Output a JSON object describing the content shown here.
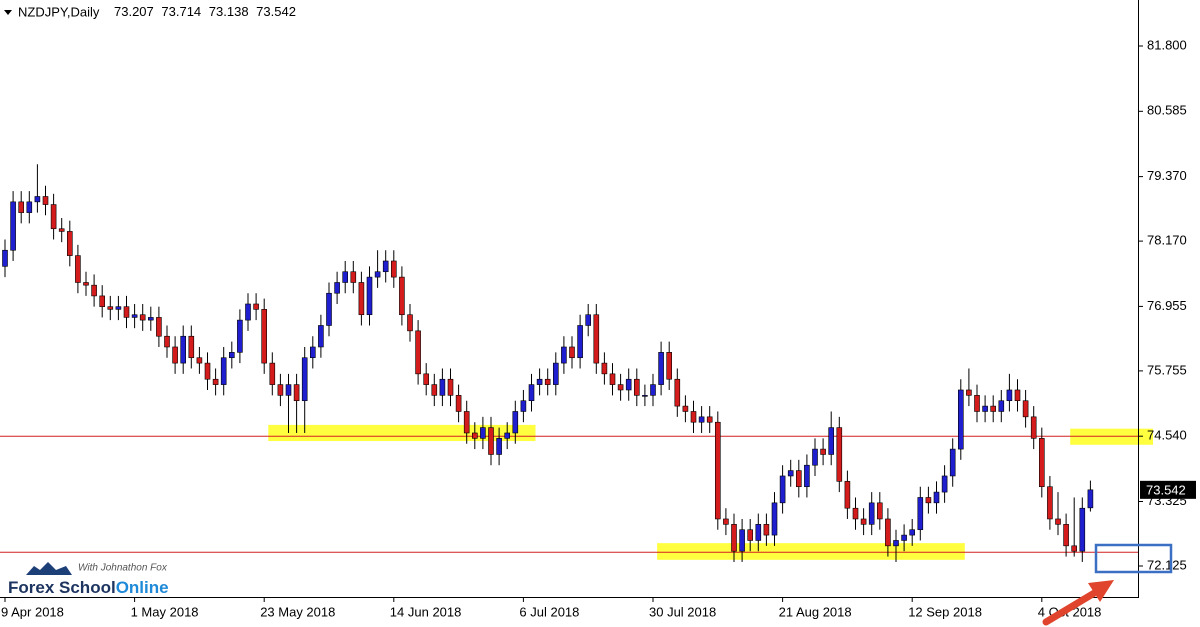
{
  "chart_data": {
    "type": "candlestick",
    "title": "NZDJPY,Daily",
    "up_color": "#1f1fd0",
    "down_color": "#d41c1c",
    "wick_color": "#000000",
    "ylim": [
      71.548,
      82.656
    ],
    "yticks": [
      {
        "value": 72.125,
        "label": "72.125"
      },
      {
        "value": 73.325,
        "label": "73.325"
      },
      {
        "value": 74.54,
        "label": "74.540"
      },
      {
        "value": 75.755,
        "label": "75.755"
      },
      {
        "value": 76.955,
        "label": "76.955"
      },
      {
        "value": 78.17,
        "label": "78.170"
      },
      {
        "value": 79.37,
        "label": "79.370"
      },
      {
        "value": 80.585,
        "label": "80.585"
      },
      {
        "value": 81.8,
        "label": "81.800"
      }
    ],
    "levels": [
      74.54,
      72.38
    ],
    "level_color": "#d42020",
    "zone_color": "#ffff40",
    "zones": [
      {
        "from": 33,
        "to": 65,
        "low": 74.45,
        "high": 74.75
      },
      {
        "from": 81,
        "to": 118,
        "low": 72.24,
        "high": 72.55
      },
      {
        "from": 132,
        "to": 142,
        "low": 74.38,
        "high": 74.68
      }
    ],
    "categories": [
      "9 Apr 2018",
      null,
      null,
      null,
      null,
      null,
      null,
      null,
      null,
      null,
      null,
      null,
      null,
      null,
      null,
      null,
      "1 May 2018",
      null,
      null,
      null,
      null,
      null,
      null,
      null,
      null,
      null,
      null,
      null,
      null,
      null,
      null,
      null,
      "23 May 2018",
      null,
      null,
      null,
      null,
      null,
      null,
      null,
      null,
      null,
      null,
      null,
      null,
      null,
      null,
      null,
      "14 Jun 2018",
      null,
      null,
      null,
      null,
      null,
      null,
      null,
      null,
      null,
      null,
      null,
      null,
      null,
      null,
      null,
      "6 Jul 2018",
      null,
      null,
      null,
      null,
      null,
      null,
      null,
      null,
      null,
      null,
      null,
      null,
      null,
      null,
      null,
      "30 Jul 2018",
      null,
      null,
      null,
      null,
      null,
      null,
      null,
      null,
      null,
      null,
      null,
      null,
      null,
      null,
      null,
      "21 Aug 2018",
      null,
      null,
      null,
      null,
      null,
      null,
      null,
      null,
      null,
      null,
      null,
      null,
      null,
      null,
      null,
      "12 Sep 2018",
      null,
      null,
      null,
      null,
      null,
      null,
      null,
      null,
      null,
      null,
      null,
      null,
      null,
      null,
      null,
      "4 Oct 2018",
      null,
      null,
      null,
      null,
      null,
      null
    ],
    "open": [
      77.7,
      78.0,
      78.9,
      78.7,
      78.9,
      79.0,
      78.85,
      78.4,
      78.35,
      77.9,
      77.4,
      77.35,
      77.15,
      76.95,
      76.9,
      76.95,
      76.75,
      76.8,
      76.7,
      76.75,
      76.4,
      76.2,
      75.9,
      76.4,
      76.0,
      75.9,
      75.6,
      75.5,
      76.0,
      76.1,
      76.7,
      77.0,
      76.9,
      75.9,
      75.5,
      75.3,
      75.5,
      75.2,
      76.0,
      76.2,
      76.6,
      77.2,
      77.4,
      77.6,
      77.4,
      76.8,
      77.5,
      77.6,
      77.8,
      77.5,
      76.8,
      76.5,
      75.7,
      75.5,
      75.3,
      75.6,
      75.3,
      75.0,
      74.6,
      74.5,
      74.7,
      74.2,
      74.5,
      74.6,
      75.0,
      75.2,
      75.5,
      75.6,
      75.5,
      75.9,
      76.2,
      76.0,
      76.6,
      76.8,
      75.9,
      75.7,
      75.5,
      75.4,
      75.6,
      75.3,
      75.3,
      75.5,
      76.1,
      75.6,
      75.1,
      75.0,
      74.8,
      74.9,
      74.8,
      73.0,
      72.9,
      72.4,
      72.8,
      72.6,
      72.9,
      72.7,
      73.3,
      73.8,
      73.9,
      73.6,
      74.0,
      74.3,
      74.2,
      74.7,
      73.7,
      73.2,
      73.0,
      72.9,
      73.3,
      73.0,
      72.5,
      72.6,
      72.7,
      72.8,
      73.4,
      73.3,
      73.5,
      73.8,
      74.3,
      75.4,
      75.3,
      75.0,
      75.1,
      75.0,
      75.2,
      75.4,
      75.2,
      74.9,
      74.5,
      73.6,
      73.0,
      72.9,
      72.5,
      72.4,
      73.207
    ],
    "high": [
      78.2,
      79.1,
      79.1,
      79.1,
      79.6,
      79.2,
      79.05,
      78.6,
      78.55,
      78.1,
      77.6,
      77.55,
      77.35,
      77.15,
      77.15,
      77.15,
      77.0,
      77.0,
      76.95,
      76.95,
      76.6,
      76.4,
      76.6,
      76.6,
      76.2,
      76.1,
      75.8,
      76.2,
      76.3,
      76.9,
      77.2,
      77.2,
      77.1,
      76.1,
      75.7,
      75.7,
      75.7,
      76.2,
      76.4,
      76.8,
      77.4,
      77.6,
      77.8,
      77.8,
      77.6,
      77.7,
      78.0,
      78.0,
      78.0,
      77.7,
      77.0,
      76.7,
      75.9,
      75.7,
      75.8,
      75.8,
      75.5,
      75.2,
      74.8,
      74.9,
      74.9,
      74.7,
      74.8,
      75.2,
      75.4,
      75.7,
      75.8,
      75.8,
      76.1,
      76.4,
      76.4,
      76.8,
      77.0,
      77.0,
      76.1,
      75.9,
      75.7,
      75.8,
      75.8,
      75.5,
      75.7,
      76.3,
      76.3,
      75.8,
      75.3,
      75.2,
      75.1,
      75.1,
      75.0,
      73.2,
      73.1,
      73.0,
      73.0,
      73.1,
      73.1,
      73.5,
      74.0,
      74.1,
      74.1,
      74.2,
      74.5,
      74.5,
      75.0,
      74.9,
      73.9,
      73.4,
      73.2,
      73.5,
      73.5,
      73.2,
      72.8,
      72.9,
      73.0,
      73.6,
      73.6,
      73.7,
      74.0,
      74.5,
      75.6,
      75.8,
      75.5,
      75.3,
      75.3,
      75.4,
      75.7,
      75.6,
      75.4,
      75.1,
      74.7,
      73.8,
      73.5,
      73.1,
      73.4,
      73.4,
      73.714
    ],
    "low": [
      77.5,
      77.8,
      78.5,
      78.5,
      78.7,
      78.65,
      78.2,
      78.15,
      77.7,
      77.2,
      77.15,
      76.95,
      76.75,
      76.7,
      76.7,
      76.55,
      76.55,
      76.5,
      76.5,
      76.2,
      76.0,
      75.7,
      75.7,
      75.8,
      75.7,
      75.4,
      75.3,
      75.3,
      75.8,
      75.9,
      76.5,
      76.7,
      75.7,
      75.3,
      75.1,
      74.6,
      74.6,
      74.6,
      75.8,
      76.0,
      76.4,
      77.0,
      77.2,
      77.2,
      76.6,
      76.6,
      77.3,
      77.4,
      77.3,
      76.6,
      76.3,
      75.5,
      75.3,
      75.1,
      75.1,
      75.1,
      74.8,
      74.4,
      74.3,
      74.3,
      74.0,
      74.0,
      74.3,
      74.4,
      74.8,
      75.0,
      75.3,
      75.3,
      75.3,
      75.7,
      75.8,
      75.8,
      76.4,
      75.7,
      75.5,
      75.3,
      75.2,
      75.2,
      75.1,
      75.1,
      75.1,
      75.3,
      75.4,
      74.9,
      74.8,
      74.6,
      74.6,
      74.6,
      72.8,
      72.7,
      72.2,
      72.2,
      72.4,
      72.4,
      72.5,
      72.5,
      73.1,
      73.6,
      73.4,
      73.4,
      73.8,
      74.0,
      74.0,
      73.5,
      73.0,
      72.8,
      72.7,
      72.7,
      72.8,
      72.3,
      72.2,
      72.4,
      72.5,
      72.6,
      73.1,
      73.1,
      73.3,
      73.6,
      74.1,
      75.1,
      74.8,
      74.8,
      74.8,
      74.8,
      75.0,
      75.0,
      74.7,
      74.3,
      73.4,
      72.8,
      72.7,
      72.3,
      72.3,
      72.2,
      73.138
    ],
    "close": [
      78.0,
      78.9,
      78.7,
      78.9,
      79.0,
      78.85,
      78.4,
      78.35,
      77.9,
      77.4,
      77.35,
      77.15,
      76.95,
      76.9,
      76.95,
      76.75,
      76.8,
      76.7,
      76.75,
      76.4,
      76.2,
      75.9,
      76.4,
      76.0,
      75.9,
      75.6,
      75.5,
      76.0,
      76.1,
      76.7,
      77.0,
      76.9,
      75.9,
      75.5,
      75.3,
      75.5,
      75.2,
      76.0,
      76.2,
      76.6,
      77.2,
      77.4,
      77.6,
      77.4,
      76.8,
      77.5,
      77.6,
      77.8,
      77.5,
      76.8,
      76.5,
      75.7,
      75.5,
      75.3,
      75.6,
      75.3,
      75.0,
      74.6,
      74.5,
      74.7,
      74.2,
      74.5,
      74.6,
      75.0,
      75.2,
      75.5,
      75.6,
      75.5,
      75.9,
      76.2,
      76.0,
      76.6,
      76.8,
      75.9,
      75.7,
      75.5,
      75.4,
      75.6,
      75.3,
      75.3,
      75.5,
      76.1,
      75.6,
      75.1,
      75.0,
      74.8,
      74.9,
      74.8,
      73.0,
      72.9,
      72.4,
      72.8,
      72.6,
      72.9,
      72.7,
      73.3,
      73.8,
      73.9,
      73.6,
      74.0,
      74.3,
      74.2,
      74.7,
      73.7,
      73.2,
      73.0,
      72.9,
      73.3,
      73.0,
      72.5,
      72.6,
      72.7,
      72.8,
      73.4,
      73.3,
      73.5,
      73.8,
      74.3,
      75.4,
      75.3,
      75.0,
      75.1,
      75.0,
      75.2,
      75.4,
      75.2,
      74.9,
      74.5,
      73.6,
      73.0,
      72.9,
      72.5,
      72.4,
      73.2,
      73.542
    ]
  },
  "logo": {
    "tagline": "With Johnathon Fox",
    "name": "Forex School",
    "name_accent": "Online"
  }
}
